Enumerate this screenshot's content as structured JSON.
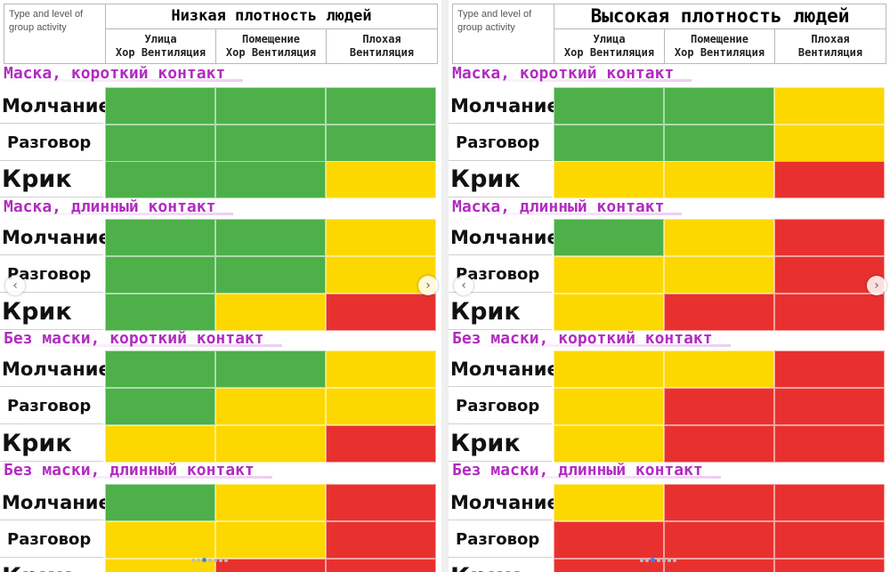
{
  "header_left": "Type and level of group activity",
  "column_headers": [
    "Улица\nХор Вентиляция",
    "Помещение\nХор Вентиляция",
    "Плохая\nВентиляция"
  ],
  "activities": [
    "Молчание",
    "Разговор",
    "Крик"
  ],
  "sections": [
    "Маска, короткий контакт",
    "Маска, длинный контакт",
    "Без маски, короткий контакт",
    "Без маски, длинный контакт"
  ],
  "panels": [
    {
      "title": "Низкая плотность людей",
      "grids": [
        [
          [
            "green",
            "green",
            "green"
          ],
          [
            "green",
            "green",
            "green"
          ],
          [
            "green",
            "green",
            "yellow"
          ]
        ],
        [
          [
            "green",
            "green",
            "yellow"
          ],
          [
            "green",
            "green",
            "yellow"
          ],
          [
            "green",
            "yellow",
            "red"
          ]
        ],
        [
          [
            "green",
            "green",
            "yellow"
          ],
          [
            "green",
            "yellow",
            "yellow"
          ],
          [
            "yellow",
            "yellow",
            "red"
          ]
        ],
        [
          [
            "green",
            "yellow",
            "red"
          ],
          [
            "yellow",
            "yellow",
            "red"
          ],
          [
            "yellow",
            "red",
            "red"
          ]
        ]
      ]
    },
    {
      "title": "Высокая плотность людей",
      "grids": [
        [
          [
            "green",
            "green",
            "yellow"
          ],
          [
            "green",
            "green",
            "yellow"
          ],
          [
            "yellow",
            "yellow",
            "red"
          ]
        ],
        [
          [
            "green",
            "yellow",
            "red"
          ],
          [
            "yellow",
            "yellow",
            "red"
          ],
          [
            "yellow",
            "red",
            "red"
          ]
        ],
        [
          [
            "yellow",
            "yellow",
            "red"
          ],
          [
            "yellow",
            "red",
            "red"
          ],
          [
            "yellow",
            "red",
            "red"
          ]
        ],
        [
          [
            "yellow",
            "red",
            "red"
          ],
          [
            "red",
            "red",
            "red"
          ],
          [
            "red",
            "red",
            "red"
          ]
        ]
      ]
    }
  ],
  "colors": {
    "green": "#4db049",
    "yellow": "#fdd700",
    "red": "#e8312f",
    "section_text": "#b02cc0"
  },
  "nav_icons": {
    "prev": "chevron-left-icon",
    "next": "chevron-right-icon"
  },
  "carousel": {
    "total_dots": 7,
    "active_index": 2
  }
}
